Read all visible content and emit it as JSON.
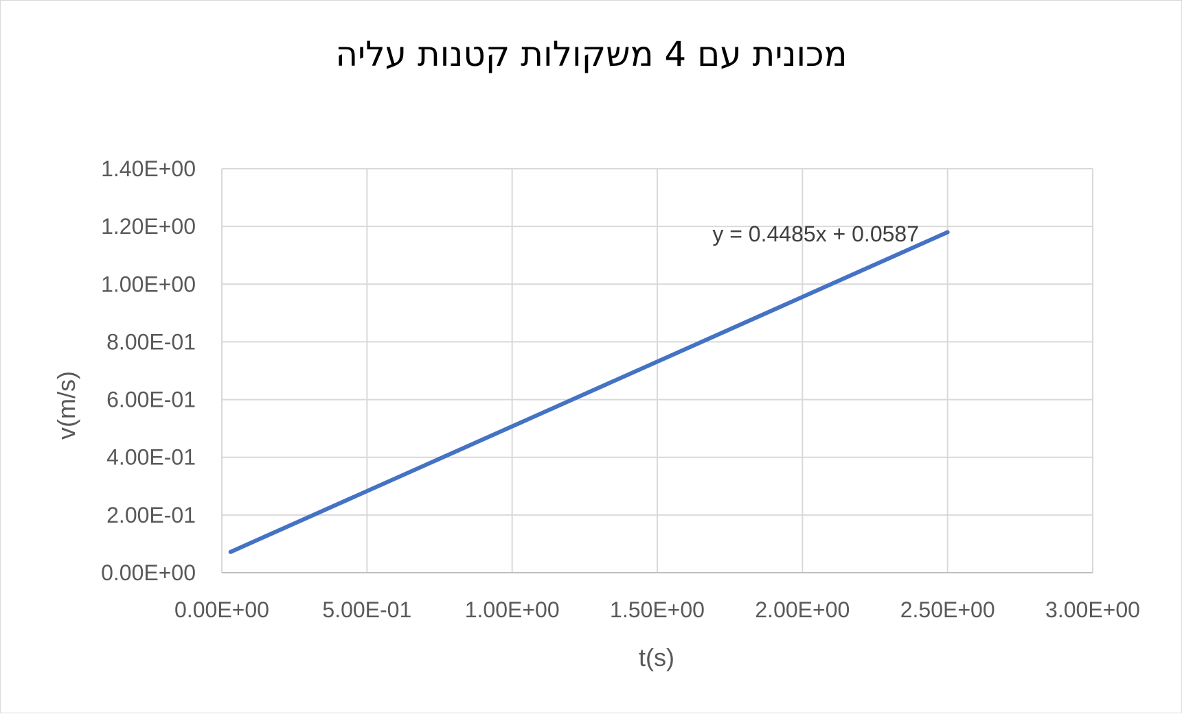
{
  "chart_data": {
    "type": "line",
    "title": "מכונית עם 4 משקולות קטנות עליה",
    "xlabel": "t(s)",
    "ylabel": "v(m/s)",
    "xlim": [
      0,
      3
    ],
    "ylim": [
      0,
      1.4
    ],
    "x_ticks": [
      0,
      0.5,
      1.0,
      1.5,
      2.0,
      2.5,
      3.0
    ],
    "y_ticks": [
      0,
      0.2,
      0.4,
      0.6,
      0.8,
      1.0,
      1.2,
      1.4
    ],
    "x_tick_labels": [
      "0.00E+00",
      "5.00E-01",
      "1.00E+00",
      "1.50E+00",
      "2.00E+00",
      "2.50E+00",
      "3.00E+00"
    ],
    "y_tick_labels": [
      "0.00E+00",
      "2.00E-01",
      "4.00E-01",
      "6.00E-01",
      "8.00E-01",
      "1.00E+00",
      "1.20E+00",
      "1.40E+00"
    ],
    "grid": true,
    "series": [
      {
        "color": "#4472c4",
        "x": [
          0.03,
          2.5
        ],
        "y": [
          0.072,
          1.18
        ]
      }
    ],
    "annotations": [
      {
        "text": "y = 0.4485x + 0.0587",
        "x": 2.5,
        "y": 1.18
      }
    ]
  }
}
